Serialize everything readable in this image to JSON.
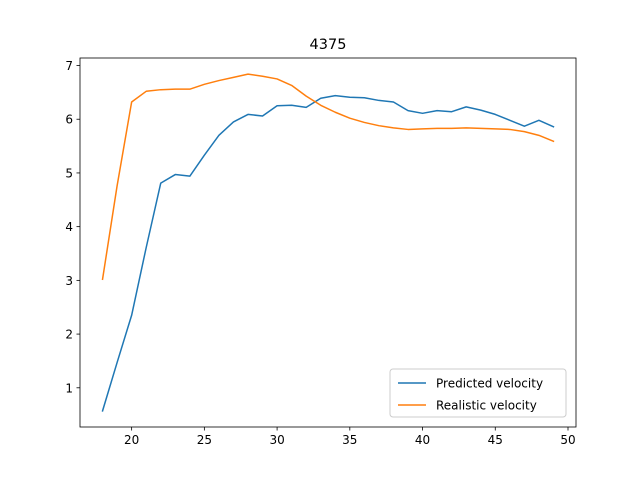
{
  "chart_data": {
    "type": "line",
    "title": "4375",
    "xlabel": "",
    "ylabel": "",
    "xlim": [
      16.45,
      50.55
    ],
    "ylim": [
      0.27,
      7.14
    ],
    "xticks": [
      20,
      25,
      30,
      35,
      40,
      45,
      50
    ],
    "yticks": [
      1,
      2,
      3,
      4,
      5,
      6,
      7
    ],
    "grid": false,
    "legend_position": "lower-right",
    "x": [
      18,
      19,
      20,
      21,
      22,
      23,
      24,
      25,
      26,
      27,
      28,
      29,
      30,
      31,
      32,
      33,
      34,
      35,
      36,
      37,
      38,
      39,
      40,
      41,
      42,
      43,
      44,
      45,
      46,
      47,
      48,
      49
    ],
    "series": [
      {
        "name": "Predicted velocity",
        "color": "#1f77b4",
        "values": [
          0.57,
          1.47,
          2.35,
          3.61,
          4.81,
          4.97,
          4.94,
          5.33,
          5.7,
          5.95,
          6.09,
          6.06,
          6.25,
          6.26,
          6.22,
          6.39,
          6.44,
          6.41,
          6.4,
          6.35,
          6.32,
          6.16,
          6.11,
          6.16,
          6.14,
          6.23,
          6.17,
          6.09,
          5.98,
          5.87,
          5.98,
          5.86
        ]
      },
      {
        "name": "Realistic velocity",
        "color": "#ff7f0e",
        "values": [
          3.02,
          4.76,
          6.32,
          6.52,
          6.55,
          6.56,
          6.56,
          6.65,
          6.72,
          6.78,
          6.84,
          6.8,
          6.75,
          6.63,
          6.43,
          6.26,
          6.13,
          6.02,
          5.94,
          5.88,
          5.84,
          5.81,
          5.82,
          5.83,
          5.83,
          5.84,
          5.83,
          5.82,
          5.81,
          5.77,
          5.7,
          5.59
        ]
      }
    ]
  }
}
